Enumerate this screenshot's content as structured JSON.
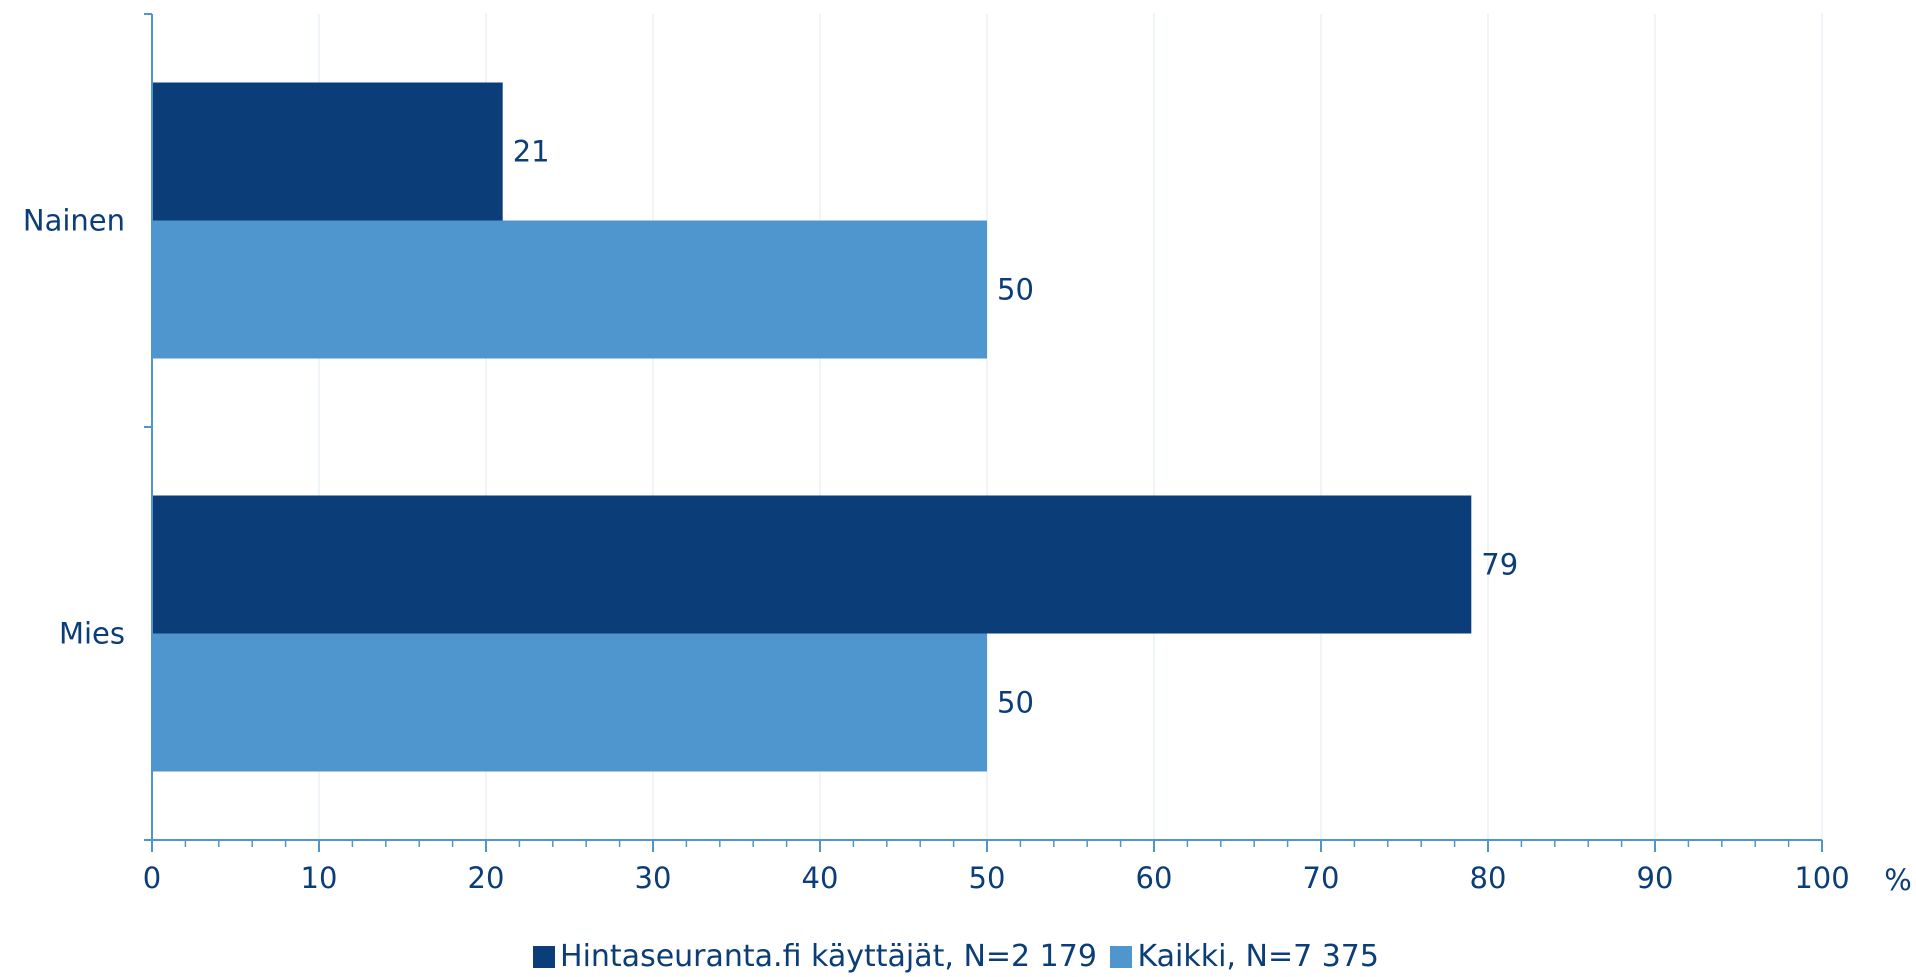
{
  "chart_data": {
    "type": "bar",
    "orientation": "horizontal",
    "categories": [
      "Nainen",
      "Mies"
    ],
    "series": [
      {
        "name": "Hintaseuranta.fi käyttäjät, N=2 179",
        "values": [
          21,
          79
        ],
        "color": "#0b3d78"
      },
      {
        "name": "Kaikki, N=7 375",
        "values": [
          50,
          50
        ],
        "color": "#4f96ce"
      }
    ],
    "xlim": [
      0,
      100
    ],
    "xticks": [
      0,
      10,
      20,
      30,
      40,
      50,
      60,
      70,
      80,
      90,
      100
    ],
    "xunit": "%",
    "data_labels": true,
    "grid": "vertical",
    "legend": "bottom-center",
    "colors": {
      "text": "#0b3d78",
      "axis": "#4f96ce",
      "grid": "#dfe9f3"
    }
  }
}
